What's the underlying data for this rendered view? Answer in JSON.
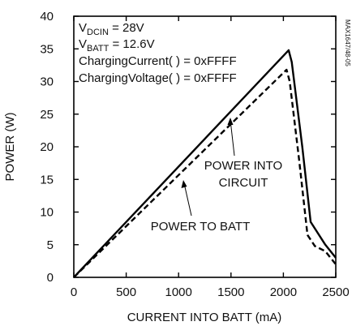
{
  "chart_data": {
    "type": "line",
    "xlabel": "CURRENT INTO BATT (mA)",
    "ylabel": "POWER (W)",
    "xlim": [
      0,
      2500
    ],
    "ylim": [
      0,
      40
    ],
    "xticks": [
      0,
      500,
      1000,
      1500,
      2000,
      2500
    ],
    "yticks": [
      0,
      5,
      10,
      15,
      20,
      25,
      30,
      35,
      40
    ],
    "grid": false,
    "figure_id": "MAX1647/48-05",
    "conditions": [
      {
        "main": "V",
        "sub": "DCIN",
        "rest": " = 28V"
      },
      {
        "main": "V",
        "sub": "BATT",
        "rest": " = 12.6V"
      },
      {
        "main": "ChargingCurrent( ) = 0xFFFF",
        "sub": "",
        "rest": ""
      },
      {
        "main": "ChargingVoltage( ) = 0xFFFF",
        "sub": "",
        "rest": ""
      }
    ],
    "series": [
      {
        "name": "POWER INTO CIRCUIT",
        "style": "solid",
        "color": "#000000",
        "x": [
          0,
          2050,
          2080,
          2180,
          2260,
          2400,
          2500
        ],
        "y": [
          0,
          34.8,
          33,
          20,
          8.5,
          5,
          3
        ]
      },
      {
        "name": "POWER TO BATT",
        "style": "dashed",
        "color": "#000000",
        "x": [
          0,
          2030,
          2060,
          2150,
          2230,
          2300,
          2400,
          2500
        ],
        "y": [
          0,
          31.8,
          30,
          18,
          6.5,
          4.8,
          4,
          2
        ]
      }
    ],
    "annotations": [
      {
        "text": "POWER INTO",
        "series": 0
      },
      {
        "text": "CIRCUIT",
        "series": 0
      },
      {
        "text": "POWER TO BATT",
        "series": 1
      }
    ]
  }
}
